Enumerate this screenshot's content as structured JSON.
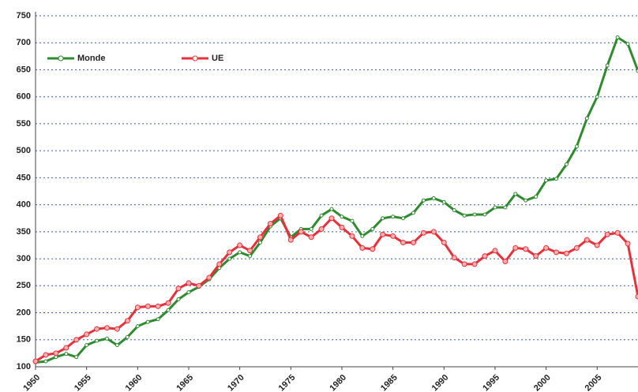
{
  "chart_data": {
    "type": "line",
    "x": [
      1950,
      1951,
      1952,
      1953,
      1954,
      1955,
      1956,
      1957,
      1958,
      1959,
      1960,
      1961,
      1962,
      1963,
      1964,
      1965,
      1966,
      1967,
      1968,
      1969,
      1970,
      1971,
      1972,
      1973,
      1974,
      1975,
      1976,
      1977,
      1978,
      1979,
      1980,
      1981,
      1982,
      1983,
      1984,
      1985,
      1986,
      1987,
      1988,
      1989,
      1990,
      1991,
      1992,
      1993,
      1994,
      1995,
      1996,
      1997,
      1998,
      1999,
      2000,
      2001,
      2002,
      2003,
      2004,
      2005,
      2006,
      2007,
      2008,
      2009
    ],
    "series": [
      {
        "name": "Monde",
        "color": "#2e8b2e",
        "values": [
          108,
          110,
          118,
          124,
          118,
          140,
          148,
          152,
          140,
          155,
          175,
          183,
          188,
          205,
          225,
          238,
          248,
          262,
          283,
          300,
          312,
          305,
          330,
          360,
          375,
          340,
          355,
          355,
          380,
          392,
          378,
          370,
          342,
          355,
          375,
          378,
          375,
          385,
          408,
          412,
          405,
          390,
          380,
          382,
          382,
          395,
          395,
          420,
          408,
          415,
          445,
          448,
          475,
          508,
          560,
          600,
          658,
          710,
          698,
          648
        ]
      },
      {
        "name": "UE",
        "color": "#e8303a",
        "values": [
          110,
          122,
          125,
          135,
          150,
          160,
          170,
          172,
          170,
          185,
          210,
          212,
          212,
          218,
          245,
          255,
          250,
          265,
          290,
          312,
          325,
          315,
          340,
          365,
          380,
          335,
          350,
          340,
          355,
          375,
          358,
          342,
          320,
          318,
          345,
          342,
          330,
          330,
          348,
          350,
          330,
          302,
          290,
          290,
          305,
          315,
          295,
          320,
          318,
          305,
          320,
          312,
          310,
          320,
          335,
          325,
          345,
          348,
          328,
          230
        ]
      }
    ],
    "xlim": [
      1950,
      2009
    ],
    "xticks": [
      1950,
      1955,
      1960,
      1965,
      1970,
      1975,
      1980,
      1985,
      1990,
      1995,
      2000,
      2005
    ],
    "ylim": [
      100,
      750
    ],
    "yticks": [
      100,
      150,
      200,
      250,
      300,
      350,
      400,
      450,
      500,
      550,
      600,
      650,
      700,
      750
    ],
    "grid": true,
    "legend": "top-left"
  }
}
